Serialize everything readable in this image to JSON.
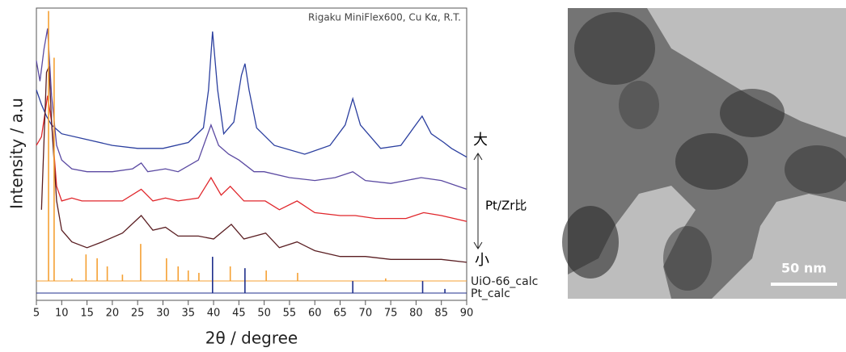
{
  "chart_data": {
    "type": "line",
    "annotation": "Rigaku MiniFlex600, Cu Kα, R.T.",
    "xlabel": "2θ / degree",
    "ylabel": "Intensity / a.u",
    "xlim": [
      5,
      90
    ],
    "ylim": [
      0,
      100
    ],
    "xticks": [
      5,
      10,
      15,
      20,
      25,
      30,
      35,
      40,
      45,
      50,
      55,
      60,
      65,
      70,
      75,
      80,
      85,
      90
    ],
    "arrow_top_label": "大",
    "arrow_bottom_label": "小",
    "arrow_label": "Pt/Zr比",
    "series": [
      {
        "style": "line",
        "color": "#2b3f9f",
        "x": [
          5,
          6,
          7,
          8,
          10,
          15,
          20,
          25,
          30,
          35,
          38,
          39,
          39.8,
          40.8,
          42,
          44,
          45.5,
          46.2,
          47,
          48.5,
          52,
          58,
          63,
          66,
          67.5,
          69,
          73,
          77,
          79.5,
          81.2,
          83,
          85.5,
          87,
          90
        ],
        "values": [
          72,
          67,
          63,
          60,
          57,
          55,
          53,
          52,
          52,
          54,
          59,
          72,
          92,
          72,
          57,
          61,
          77,
          81,
          72,
          59,
          53,
          50,
          53,
          60,
          69,
          60,
          52,
          53,
          59,
          63,
          57,
          54,
          52,
          49
        ]
      },
      {
        "style": "line",
        "color": "#5b4aa2",
        "x": [
          5,
          5.7,
          6.5,
          7.2,
          8,
          9,
          10,
          12,
          15,
          20,
          24,
          25.7,
          27,
          30.5,
          33,
          37,
          39.5,
          41,
          43,
          45,
          48,
          50,
          55,
          60,
          64,
          67.5,
          70,
          75,
          81,
          85,
          90
        ],
        "values": [
          82,
          75,
          86,
          93,
          70,
          53,
          48,
          45,
          44,
          44,
          45,
          47,
          44,
          45,
          44,
          48,
          60,
          53,
          50,
          48,
          44,
          44,
          42,
          41,
          42,
          44,
          41,
          40,
          42,
          41,
          38
        ]
      },
      {
        "style": "line",
        "color": "#e0262b",
        "x": [
          5,
          6,
          7.2,
          8,
          9,
          10,
          12,
          14,
          18,
          22,
          25.7,
          28,
          30.5,
          33,
          37,
          39.5,
          41.5,
          43.3,
          46,
          50.2,
          53,
          56.5,
          60,
          65,
          68,
          72,
          78,
          81.5,
          85,
          90
        ],
        "values": [
          53,
          56,
          70,
          61,
          39,
          34,
          35,
          34,
          34,
          34,
          38,
          34,
          35,
          34,
          35,
          42,
          36,
          39,
          34,
          34,
          31,
          34,
          30,
          29,
          29,
          28,
          28,
          30,
          29,
          27
        ]
      },
      {
        "style": "line",
        "color": "#5a1e22",
        "x": [
          6,
          7,
          7.5,
          8,
          9,
          10,
          12,
          15,
          18,
          22,
          25.7,
          28,
          30.5,
          33,
          37,
          40,
          43.5,
          46,
          50.3,
          53,
          56.5,
          60,
          65,
          70,
          75,
          80,
          85,
          90
        ],
        "values": [
          31,
          78,
          80,
          61,
          34,
          24,
          20,
          18,
          20,
          23,
          29,
          24,
          25,
          22,
          22,
          21,
          26,
          21,
          23,
          18,
          20,
          17,
          15,
          15,
          14,
          14,
          14,
          13
        ]
      },
      {
        "style": "stick",
        "name": "UiO-66_calc",
        "color": "#f5a033",
        "x": [
          7.4,
          8.5,
          12,
          14.8,
          17,
          19,
          22,
          25.6,
          30.7,
          33,
          35,
          37.1,
          43.3,
          50.4,
          56.6,
          74
        ],
        "values": [
          99,
          83,
          7.5,
          15.7,
          14.4,
          11.6,
          8.8,
          19.3,
          14.4,
          11.6,
          10.2,
          9.4,
          11.6,
          10.2,
          9.4,
          7.5
        ]
      },
      {
        "style": "stick",
        "name": "Pt_calc",
        "color": "#1f2f8c",
        "x": [
          39.8,
          46.2,
          67.5,
          81.3,
          85.7
        ],
        "values": [
          14.9,
          11,
          6.6,
          6.6,
          3.9
        ]
      }
    ]
  },
  "image": {
    "scale_bar": "50 nm"
  }
}
